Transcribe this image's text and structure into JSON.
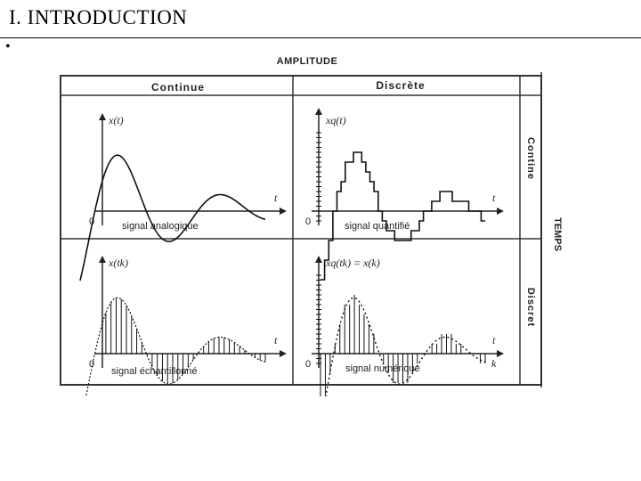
{
  "slide": {
    "title": "I. INTRODUCTION",
    "bullet": "•"
  },
  "figure": {
    "header_amplitude": "AMPLITUDE",
    "col_continuous": "Continue",
    "col_discrete": "Discrète",
    "row_axis": "TEMPS",
    "row_continuous": "Contine",
    "row_discrete": "Discret",
    "origin": "0",
    "t_label": "t",
    "k_label": "k",
    "panels": {
      "tl": {
        "ylabel": "x(t)",
        "caption": "signal analogique"
      },
      "tr": {
        "ylabel": "xq(t)",
        "caption": "signal quantifié"
      },
      "bl": {
        "ylabel": "x(tk)",
        "caption": "signal échantillonné"
      },
      "br": {
        "ylabel": "xq(tk) = x(k)",
        "caption": "signal numérique"
      }
    }
  }
}
